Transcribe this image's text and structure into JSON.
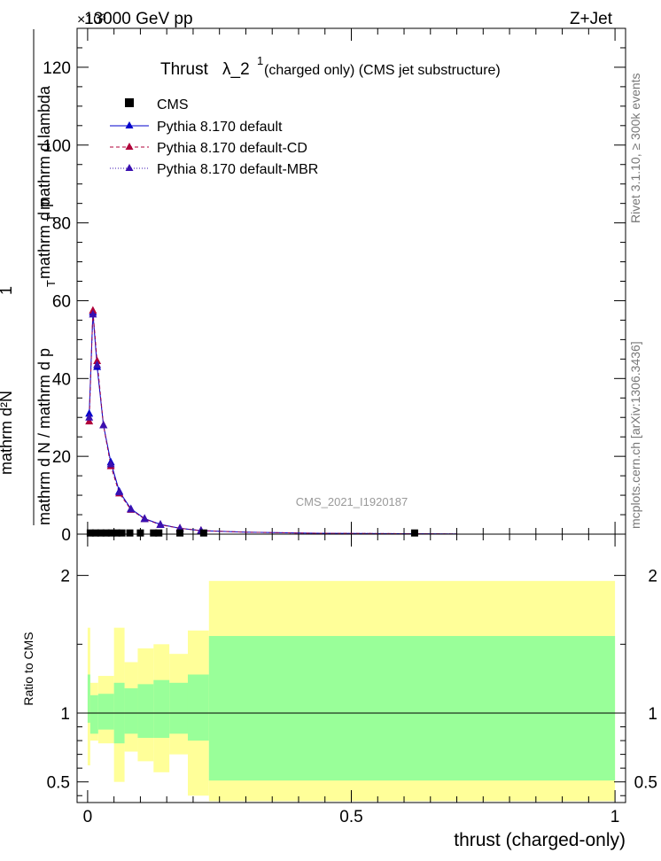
{
  "header": {
    "left": "13000 GeV pp",
    "right": "Z+Jet",
    "exponent": "×10³"
  },
  "side_text": {
    "rivet": "Rivet 3.1.10, ≥ 300k events",
    "mcplots": "mcplots.cern.ch [arXiv:1306.3436]"
  },
  "watermark": "CMS_2021_I1920187",
  "colors": {
    "cms": "#000000",
    "default": "#0000cc",
    "cd": "#b0003a",
    "mbr": "#3a10b0",
    "band_outer": "#ffff99",
    "band_inner": "#99ff99"
  },
  "chart_data": [
    {
      "type": "line",
      "title_main": "Thrust",
      "title_lambda": "λ_2",
      "title_sup": "1",
      "title_tail": " (charged only) (CMS jet substructure)",
      "ylabel_parts": [
        "mathrm d²N",
        "1",
        "mathrm d N / mathrm d p",
        "T",
        "mathrm d p",
        "T",
        "mathrm d lambda"
      ],
      "xlim": [
        -0.02,
        1.02
      ],
      "ylim": [
        0,
        130
      ],
      "yticks": [
        0,
        20,
        40,
        60,
        80,
        100,
        120
      ],
      "y_multiplier": "10^3",
      "legend": [
        "CMS",
        "Pythia 8.170 default",
        "Pythia 8.170 default-CD",
        "Pythia 8.170 default-MBR"
      ],
      "legend_position": "top-left",
      "cms": {
        "x": [
          0.005,
          0.015,
          0.025,
          0.035,
          0.045,
          0.055,
          0.065,
          0.08,
          0.1,
          0.125,
          0.135,
          0.175,
          0.22,
          0.62
        ],
        "y": [
          0.3,
          0.3,
          0.3,
          0.3,
          0.3,
          0.3,
          0.3,
          0.3,
          0.3,
          0.3,
          0.3,
          0.3,
          0.3,
          0.3
        ]
      },
      "series": [
        {
          "name": "Pythia 8.170 default",
          "x": [
            0.003,
            0.01,
            0.018,
            0.03,
            0.044,
            0.06,
            0.082,
            0.108,
            0.138,
            0.175,
            0.215,
            0.3,
            0.42,
            0.55,
            0.62,
            0.7
          ],
          "y": [
            31,
            57,
            43,
            28,
            18.5,
            11,
            6.5,
            4,
            2.5,
            1.5,
            0.9,
            0.5,
            0.25,
            0.15,
            0.1,
            0.05
          ]
        },
        {
          "name": "Pythia 8.170 default-CD",
          "x": [
            0.003,
            0.01,
            0.018,
            0.03,
            0.044,
            0.06,
            0.082,
            0.108,
            0.138,
            0.175,
            0.215,
            0.3,
            0.42,
            0.55,
            0.62,
            0.7
          ],
          "y": [
            29,
            57.5,
            44.5,
            28,
            17.5,
            10.5,
            6.3,
            3.9,
            2.4,
            1.5,
            0.9,
            0.5,
            0.25,
            0.15,
            0.1,
            0.05
          ]
        },
        {
          "name": "Pythia 8.170 default-MBR",
          "x": [
            0.003,
            0.01,
            0.018,
            0.03,
            0.044,
            0.06,
            0.082,
            0.108,
            0.138,
            0.175,
            0.215,
            0.3,
            0.42,
            0.55,
            0.62,
            0.7
          ],
          "y": [
            30,
            56.5,
            43.5,
            28,
            18,
            10.8,
            6.4,
            3.9,
            2.4,
            1.5,
            0.9,
            0.5,
            0.25,
            0.15,
            0.1,
            0.05
          ]
        }
      ]
    },
    {
      "type": "area",
      "ylabel": "Ratio to CMS",
      "xlabel": "thrust (charged-only)",
      "xlim": [
        -0.02,
        1.02
      ],
      "ylim": [
        0.35,
        2.3
      ],
      "yticks": [
        0.5,
        1,
        2
      ],
      "xticks": [
        0,
        0.5,
        1
      ],
      "reference": 1,
      "bins": [
        {
          "x0": 0.0,
          "x1": 0.005,
          "in_lo": 0.93,
          "in_hi": 1.28,
          "out_lo": 0.62,
          "out_hi": 1.62
        },
        {
          "x0": 0.005,
          "x1": 0.02,
          "in_lo": 0.85,
          "in_hi": 1.13,
          "out_lo": 0.8,
          "out_hi": 1.22
        },
        {
          "x0": 0.02,
          "x1": 0.05,
          "in_lo": 0.88,
          "in_hi": 1.14,
          "out_lo": 0.78,
          "out_hi": 1.27
        },
        {
          "x0": 0.05,
          "x1": 0.07,
          "in_lo": 0.78,
          "in_hi": 1.22,
          "out_lo": 0.5,
          "out_hi": 1.62
        },
        {
          "x0": 0.07,
          "x1": 0.095,
          "in_lo": 0.85,
          "in_hi": 1.18,
          "out_lo": 0.72,
          "out_hi": 1.37
        },
        {
          "x0": 0.095,
          "x1": 0.125,
          "in_lo": 0.82,
          "in_hi": 1.21,
          "out_lo": 0.65,
          "out_hi": 1.47
        },
        {
          "x0": 0.125,
          "x1": 0.155,
          "in_lo": 0.82,
          "in_hi": 1.24,
          "out_lo": 0.57,
          "out_hi": 1.5
        },
        {
          "x0": 0.155,
          "x1": 0.19,
          "in_lo": 0.85,
          "in_hi": 1.22,
          "out_lo": 0.7,
          "out_hi": 1.43
        },
        {
          "x0": 0.19,
          "x1": 0.23,
          "in_lo": 0.8,
          "in_hi": 1.28,
          "out_lo": 0.4,
          "out_hi": 1.6
        },
        {
          "x0": 0.23,
          "x1": 1.0,
          "in_lo": 0.51,
          "in_hi": 1.56,
          "out_lo": 0.36,
          "out_hi": 1.96
        }
      ]
    }
  ]
}
